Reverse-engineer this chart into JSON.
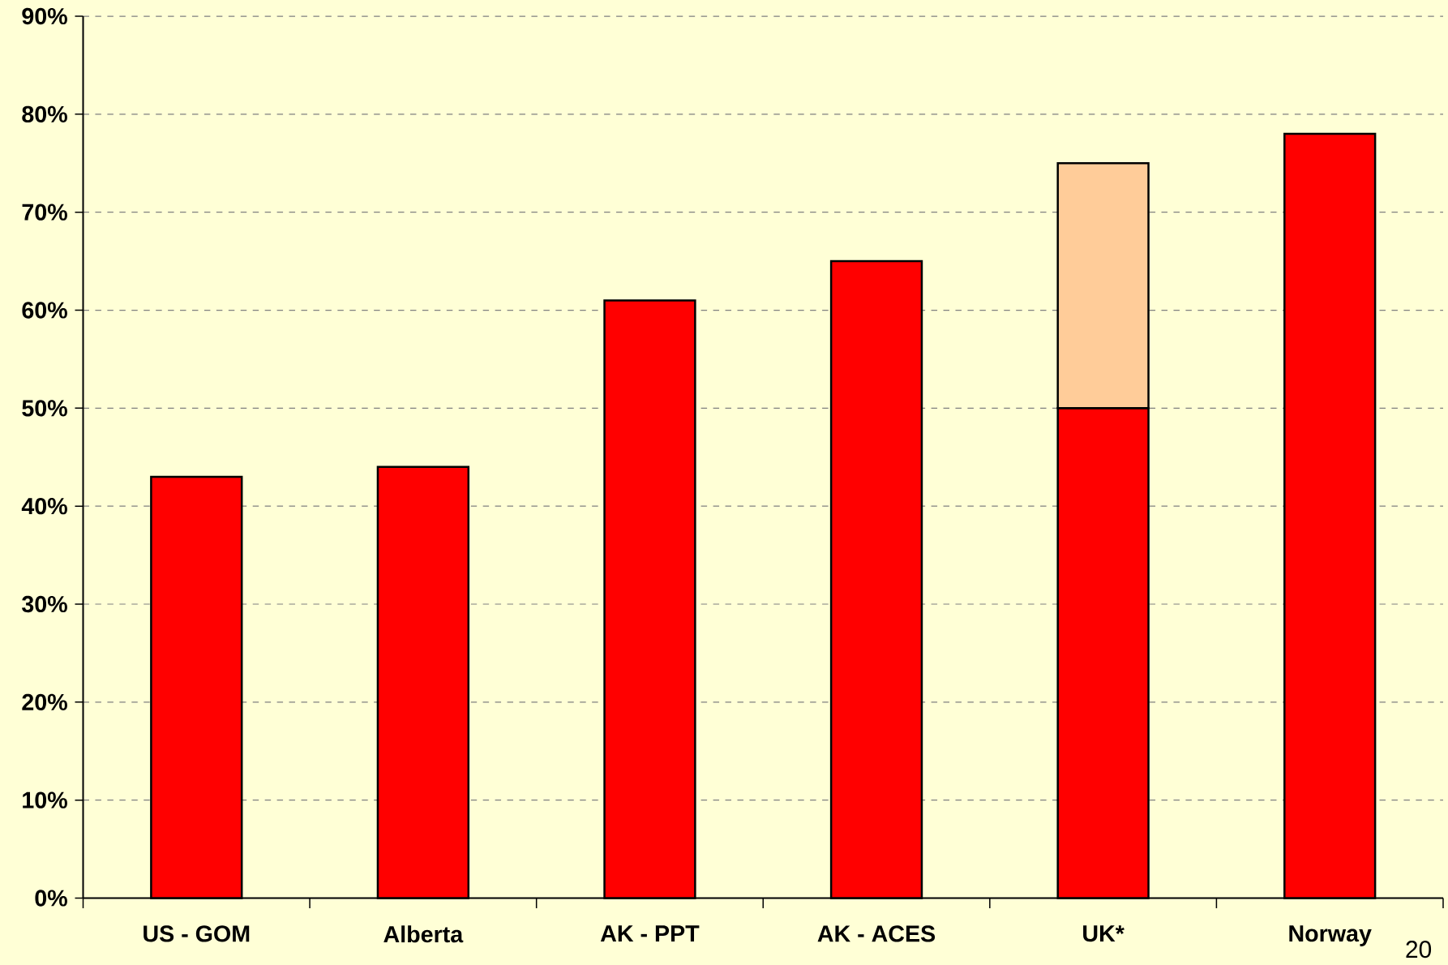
{
  "chart_data": {
    "type": "bar",
    "stacked": true,
    "categories": [
      "US - GOM",
      "Alberta",
      "AK - PPT",
      "AK - ACES",
      "UK*",
      "Norway"
    ],
    "series": [
      {
        "color": "#ff0000",
        "values": [
          43,
          44,
          61,
          65,
          50,
          78
        ]
      },
      {
        "color": "#ffcc99",
        "values": [
          null,
          null,
          null,
          null,
          25,
          null
        ]
      }
    ],
    "ylim": [
      0,
      90
    ],
    "yticks": [
      {
        "value": 0,
        "label": "0%"
      },
      {
        "value": 10,
        "label": "10%"
      },
      {
        "value": 20,
        "label": "20%"
      },
      {
        "value": 30,
        "label": "30%"
      },
      {
        "value": 40,
        "label": "40%"
      },
      {
        "value": 50,
        "label": "50%"
      },
      {
        "value": 60,
        "label": "60%"
      },
      {
        "value": 70,
        "label": "70%"
      },
      {
        "value": 80,
        "label": "80%"
      },
      {
        "value": 90,
        "label": "90%"
      }
    ],
    "grid": "y",
    "annotations": [
      "20"
    ]
  }
}
